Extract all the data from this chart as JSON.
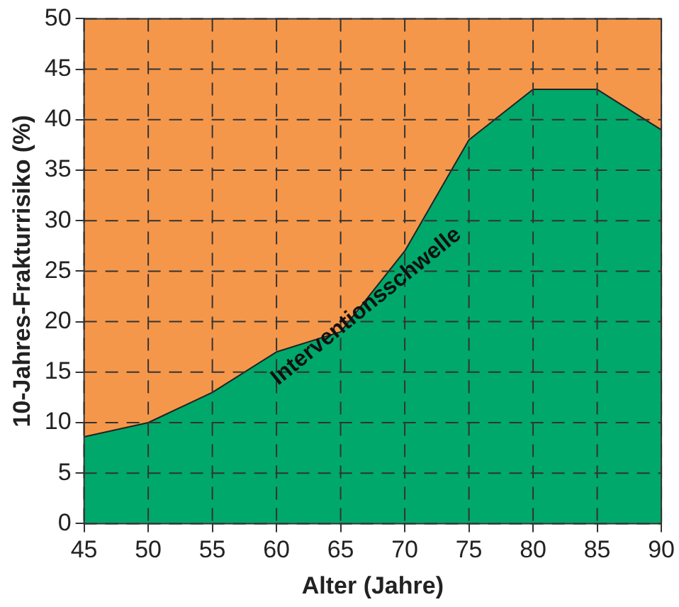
{
  "chart_data": {
    "type": "area",
    "xlabel": "Alter (Jahre)",
    "ylabel": "10-Jahres-Frakturrisiko (%)",
    "x": [
      45,
      50,
      55,
      60,
      65,
      70,
      75,
      80,
      85,
      90
    ],
    "series": [
      {
        "color": "#00a86b",
        "values": [
          8.6,
          10,
          13,
          17,
          19,
          27,
          38,
          43,
          43,
          39
        ]
      }
    ],
    "xlim": [
      45,
      90
    ],
    "xticks": [
      45,
      50,
      55,
      60,
      65,
      70,
      75,
      80,
      85,
      90
    ],
    "ylim": [
      0,
      50
    ],
    "yticks": [
      0,
      5,
      10,
      15,
      20,
      25,
      30,
      35,
      40,
      45,
      50
    ],
    "grid": true,
    "line_style": "solid",
    "marker": "none",
    "bands": [
      {
        "axis": "y",
        "from": 0,
        "to": 50,
        "color": "#f5974a"
      }
    ],
    "annotations": [
      {
        "text": "Interventionsschwelle",
        "x": 67,
        "y": 21.5
      }
    ]
  }
}
